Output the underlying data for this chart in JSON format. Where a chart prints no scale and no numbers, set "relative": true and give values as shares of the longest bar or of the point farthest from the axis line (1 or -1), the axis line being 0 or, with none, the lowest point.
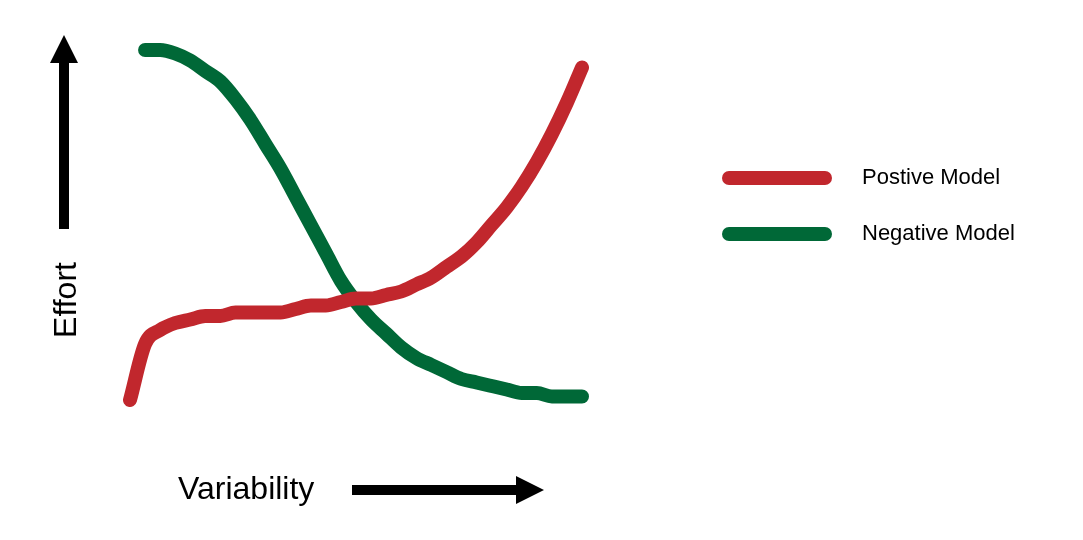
{
  "chart_data": {
    "type": "line",
    "relative": true,
    "xlabel": "Variability",
    "ylabel": "Effort",
    "legend": "right",
    "marker": "none",
    "line_style": "solid",
    "categories": [
      null,
      null,
      null,
      null,
      null,
      null,
      null,
      null,
      null,
      null,
      null,
      null,
      null,
      null,
      null,
      null,
      null,
      null,
      null,
      null,
      null,
      null,
      null,
      null,
      null,
      null,
      null,
      null,
      null,
      null,
      null
    ],
    "series": [
      {
        "name": "Postive Model",
        "color": "#c1272d",
        "values": [
          0,
          0.16,
          0.2,
          0.22,
          0.23,
          0.24,
          0.24,
          0.25,
          0.25,
          0.25,
          0.25,
          0.26,
          0.27,
          0.27,
          0.28,
          0.29,
          0.29,
          0.3,
          0.31,
          0.33,
          0.35,
          0.38,
          0.41,
          0.45,
          0.5,
          0.55,
          0.61,
          0.68,
          0.76,
          0.85,
          0.95
        ]
      },
      {
        "name": "Negative Model",
        "color": "#006837",
        "values": [
          null,
          1,
          1,
          0.99,
          0.97,
          0.94,
          0.91,
          0.86,
          0.8,
          0.73,
          0.66,
          0.58,
          0.5,
          0.42,
          0.34,
          0.28,
          0.23,
          0.19,
          0.15,
          0.12,
          0.1,
          0.08,
          0.06,
          0.05,
          0.04,
          0.03,
          0.02,
          0.02,
          0.01,
          0.01,
          0.01
        ]
      }
    ]
  }
}
